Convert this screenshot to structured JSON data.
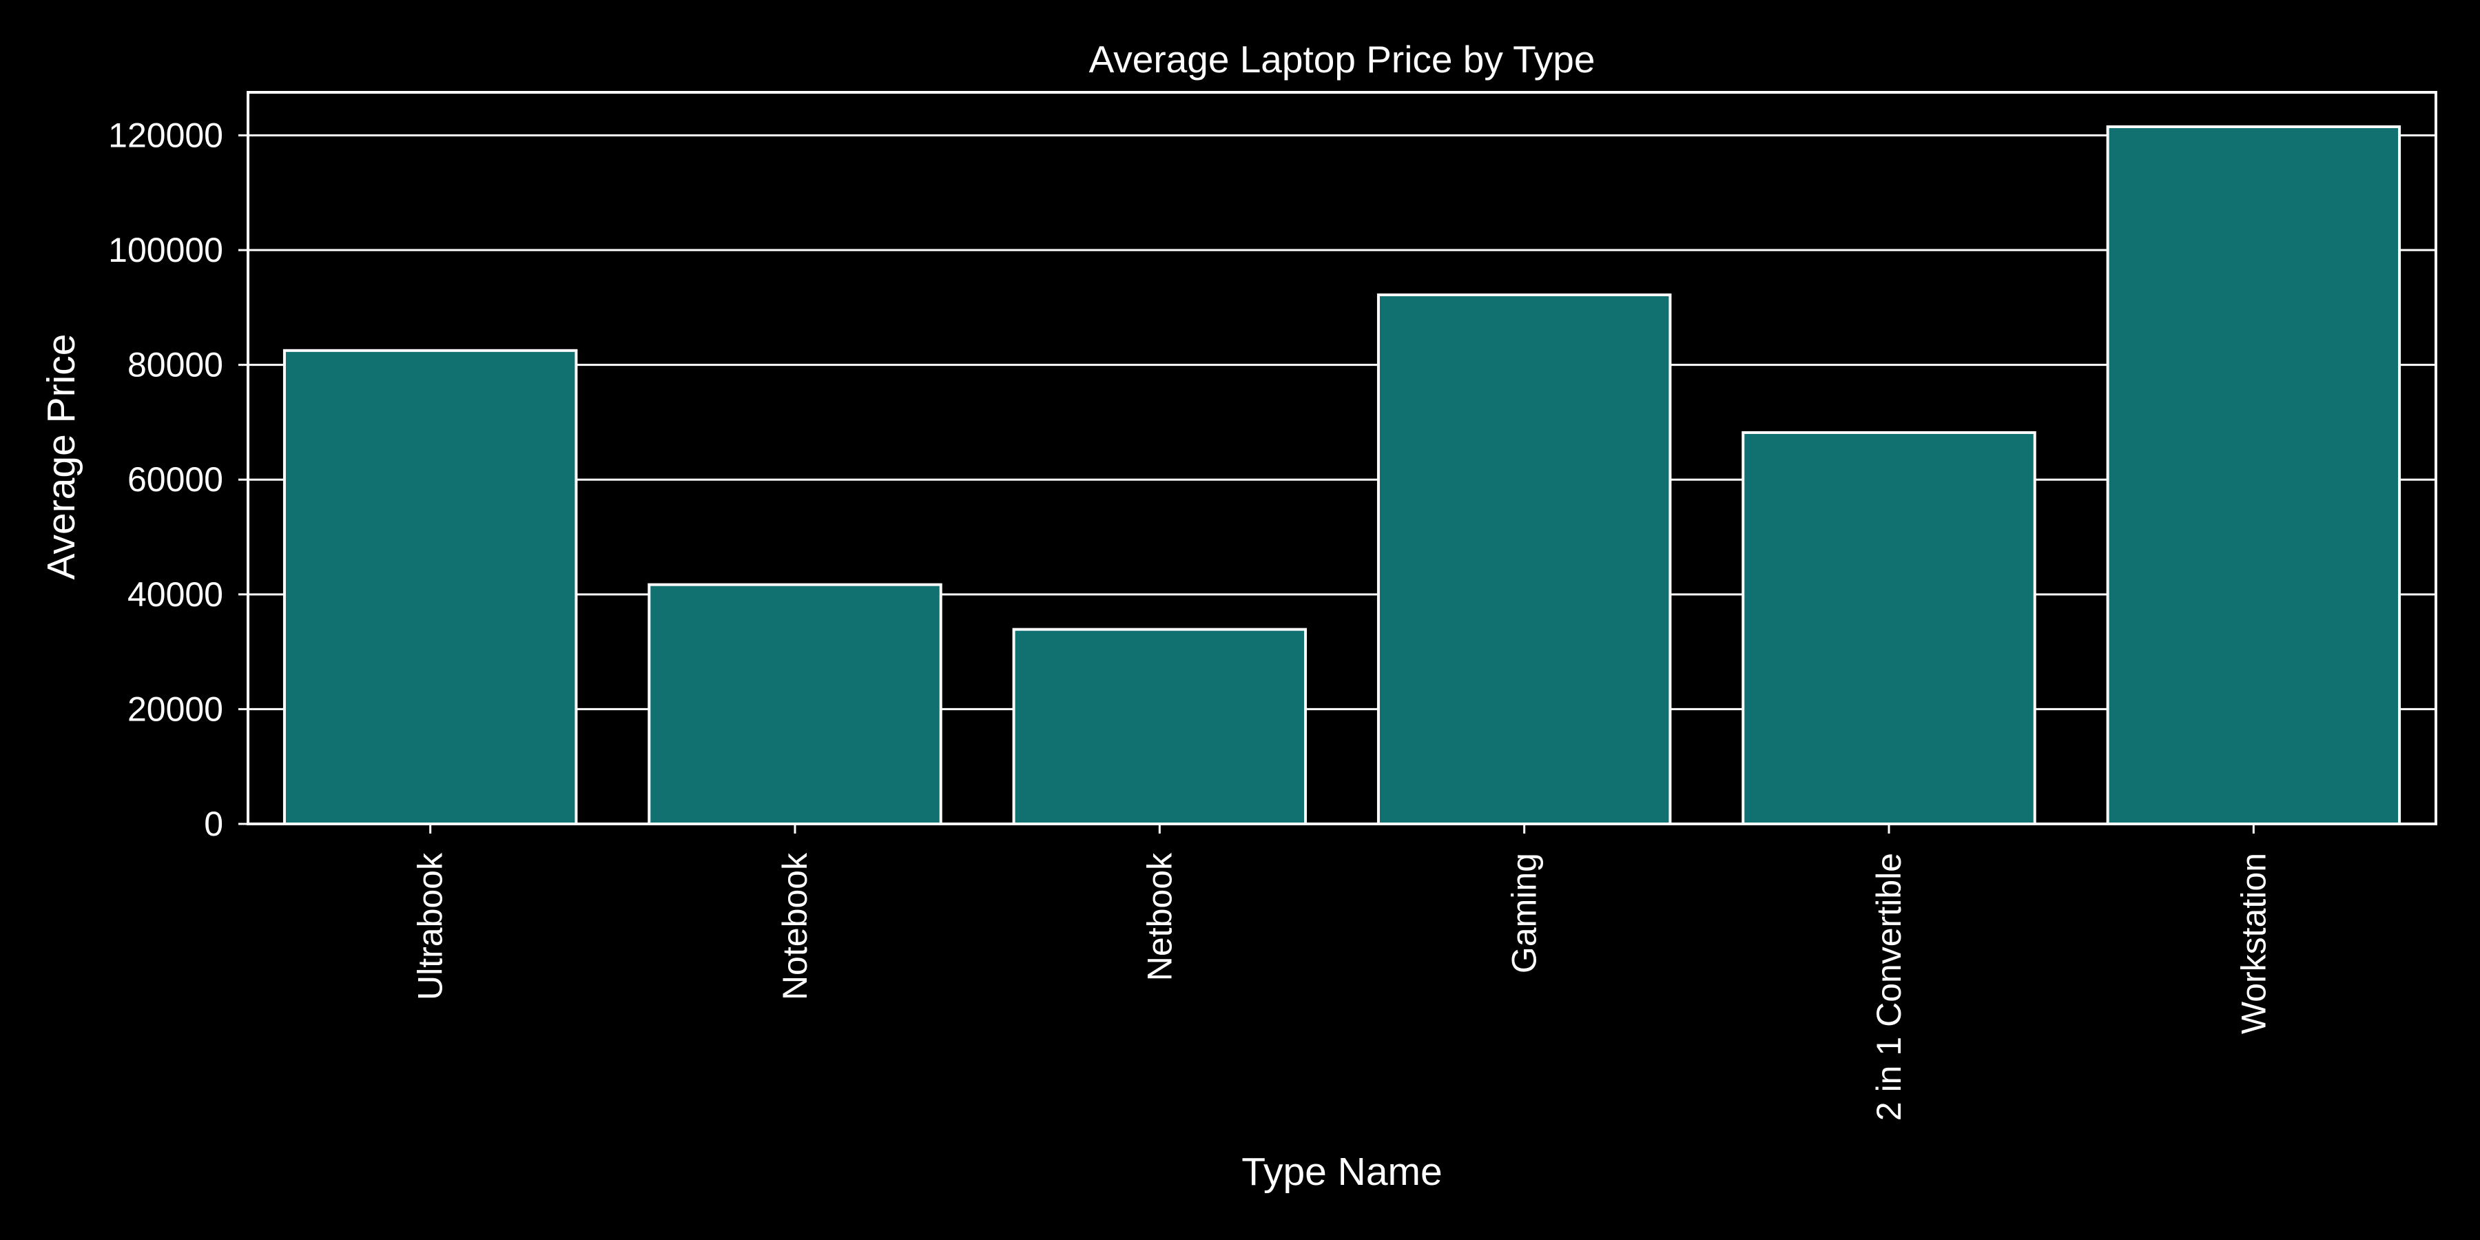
{
  "chart_data": {
    "type": "bar",
    "title": "Average Laptop Price by Type",
    "xlabel": "Type Name",
    "ylabel": "Average Price",
    "categories": [
      "Ultrabook",
      "Notebook",
      "Netbook",
      "Gaming",
      "2 in 1 Convertible",
      "Workstation"
    ],
    "values": [
      82500,
      41700,
      33900,
      92200,
      68200,
      121500
    ],
    "ylim": [
      0,
      127500
    ],
    "yticks": [
      0,
      20000,
      40000,
      60000,
      80000,
      100000,
      120000
    ],
    "grid": true,
    "colors": {
      "background": "#000000",
      "bar_fill": "#117170",
      "bar_edge": "#ffffff",
      "text": "#ffffff",
      "grid": "#ffffff"
    }
  }
}
